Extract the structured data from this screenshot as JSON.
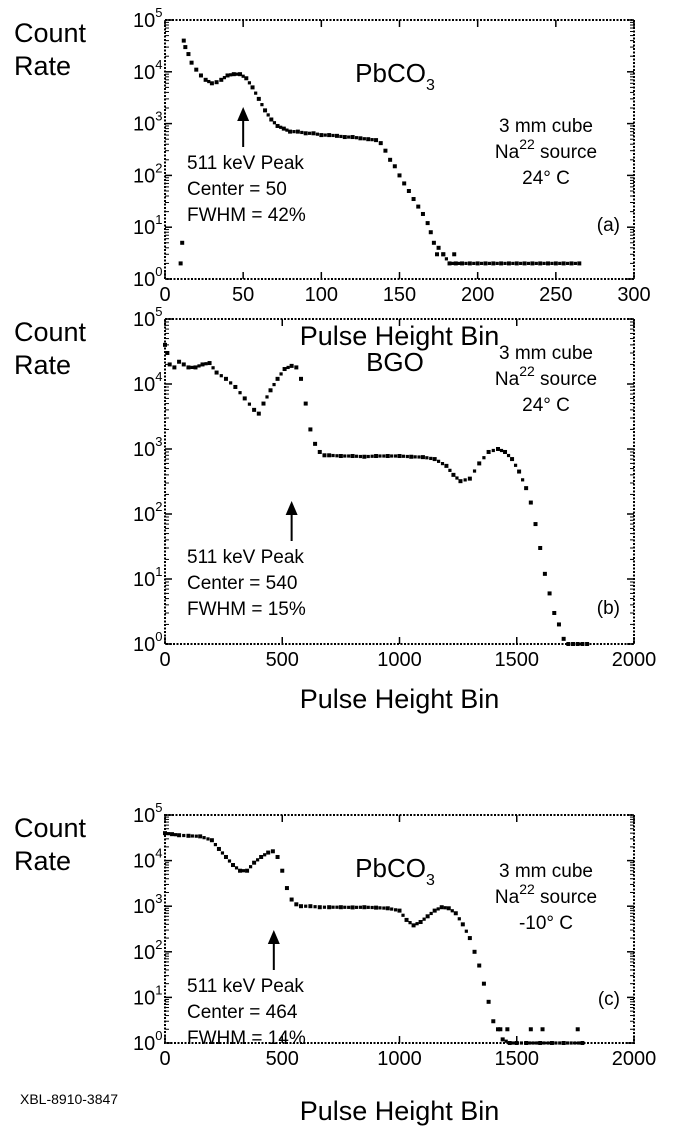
{
  "footer_code": "XBL-8910-3847",
  "chart_data": [
    {
      "type": "scatter",
      "panel_label": "(a)",
      "title": "PbCO",
      "title_subscript": "3",
      "ylabel_lines": [
        "Count",
        "Rate"
      ],
      "xlabel": "Pulse Height Bin",
      "yscale": "log",
      "ylim": [
        1,
        100000
      ],
      "xlim": [
        0,
        300
      ],
      "xticks": [
        0,
        50,
        100,
        150,
        200,
        250,
        300
      ],
      "yticks": [
        {
          "base": "10",
          "exp": "0"
        },
        {
          "base": "10",
          "exp": "1"
        },
        {
          "base": "10",
          "exp": "2"
        },
        {
          "base": "10",
          "exp": "3"
        },
        {
          "base": "10",
          "exp": "4"
        },
        {
          "base": "10",
          "exp": "5"
        }
      ],
      "info": {
        "size": "3 mm cube",
        "source_prefix": "Na",
        "source_sup": "22",
        "source_suffix": " source",
        "temperature": "24° C"
      },
      "peak": {
        "label": "511 keV Peak",
        "center": "Center = 50",
        "fwhm": "FWHM = 42%",
        "x": 50
      },
      "x": [
        12,
        13,
        15,
        17,
        20,
        23,
        26,
        30,
        33,
        36,
        40,
        44,
        48,
        52,
        56,
        60,
        64,
        68,
        72,
        76,
        80,
        85,
        90,
        95,
        100,
        105,
        110,
        115,
        120,
        125,
        130,
        135,
        138,
        141,
        144,
        147,
        150,
        153,
        156,
        159,
        162,
        165,
        168,
        170,
        172,
        175,
        178,
        182,
        186,
        190,
        195,
        200,
        205,
        210,
        215,
        220,
        225,
        230,
        235,
        240,
        245,
        250,
        255,
        260,
        265
      ],
      "y": [
        40000,
        30000,
        22000,
        15000,
        11000,
        8500,
        7000,
        6000,
        6300,
        7000,
        8500,
        9000,
        9000,
        7500,
        5000,
        3000,
        1800,
        1200,
        900,
        800,
        700,
        700,
        650,
        650,
        600,
        600,
        580,
        550,
        550,
        520,
        500,
        480,
        420,
        300,
        200,
        150,
        100,
        70,
        50,
        35,
        25,
        18,
        12,
        8,
        5,
        4,
        3,
        2,
        2,
        2,
        2,
        2,
        2,
        2,
        2,
        2,
        2,
        2,
        2,
        2,
        2,
        2,
        2,
        2,
        2
      ],
      "outliers": {
        "x": [
          11,
          10,
          174,
          178,
          185
        ],
        "y": [
          5,
          2,
          3,
          3,
          3
        ]
      }
    },
    {
      "type": "scatter",
      "panel_label": "(b)",
      "title": "BGO",
      "title_subscript": "",
      "ylabel_lines": [
        "Count",
        "Rate"
      ],
      "xlabel": "Pulse Height Bin",
      "yscale": "log",
      "ylim": [
        1,
        100000
      ],
      "xlim": [
        0,
        2000
      ],
      "xticks": [
        0,
        500,
        1000,
        1500,
        2000
      ],
      "yticks": [
        {
          "base": "10",
          "exp": "0"
        },
        {
          "base": "10",
          "exp": "1"
        },
        {
          "base": "10",
          "exp": "2"
        },
        {
          "base": "10",
          "exp": "3"
        },
        {
          "base": "10",
          "exp": "4"
        },
        {
          "base": "10",
          "exp": "5"
        }
      ],
      "info": {
        "size": "3 mm cube",
        "source_prefix": "Na",
        "source_sup": "22",
        "source_suffix": " source",
        "temperature": "24° C"
      },
      "peak": {
        "label": "511 keV Peak",
        "center": "Center = 540",
        "fwhm": "FWHM = 15%",
        "x": 540
      },
      "x": [
        0,
        10,
        20,
        40,
        60,
        80,
        100,
        130,
        160,
        190,
        220,
        260,
        300,
        340,
        380,
        400,
        420,
        450,
        480,
        510,
        540,
        560,
        580,
        600,
        620,
        640,
        660,
        680,
        700,
        750,
        800,
        850,
        900,
        950,
        1000,
        1050,
        1100,
        1150,
        1200,
        1230,
        1260,
        1300,
        1340,
        1380,
        1420,
        1450,
        1480,
        1510,
        1540,
        1560,
        1580,
        1600,
        1620,
        1640,
        1660,
        1680,
        1700,
        1720,
        1740,
        1760,
        1780,
        1800
      ],
      "y": [
        40000,
        30000,
        20000,
        18000,
        22000,
        20000,
        18000,
        18000,
        20000,
        21000,
        15000,
        12000,
        9000,
        6000,
        4000,
        3500,
        5000,
        8000,
        12000,
        17000,
        19000,
        18000,
        12000,
        5000,
        2000,
        1200,
        900,
        800,
        800,
        780,
        780,
        760,
        780,
        780,
        780,
        760,
        750,
        700,
        550,
        400,
        320,
        350,
        600,
        900,
        1000,
        900,
        700,
        450,
        250,
        150,
        70,
        30,
        12,
        6,
        3,
        2,
        1.2,
        1,
        1,
        1,
        1,
        1
      ],
      "outliers": {
        "x": [],
        "y": []
      }
    },
    {
      "type": "scatter",
      "panel_label": "(c)",
      "title": "PbCO",
      "title_subscript": "3",
      "ylabel_lines": [
        "Count",
        "Rate"
      ],
      "xlabel": "Pulse Height Bin",
      "yscale": "log",
      "ylim": [
        1,
        100000
      ],
      "xlim": [
        0,
        2000
      ],
      "xticks": [
        0,
        500,
        1000,
        1500,
        2000
      ],
      "yticks": [
        {
          "base": "10",
          "exp": "0"
        },
        {
          "base": "10",
          "exp": "1"
        },
        {
          "base": "10",
          "exp": "2"
        },
        {
          "base": "10",
          "exp": "3"
        },
        {
          "base": "10",
          "exp": "4"
        },
        {
          "base": "10",
          "exp": "5"
        }
      ],
      "info": {
        "size": "3 mm cube",
        "source_prefix": "Na",
        "source_sup": "22",
        "source_suffix": " source",
        "temperature": "-10° C"
      },
      "peak": {
        "label": "511 keV Peak",
        "center": "Center = 464",
        "fwhm": "FWHM = 14%",
        "x": 464
      },
      "x": [
        0,
        30,
        60,
        100,
        150,
        200,
        230,
        260,
        290,
        320,
        350,
        380,
        410,
        440,
        460,
        480,
        500,
        520,
        540,
        560,
        580,
        620,
        660,
        700,
        750,
        800,
        850,
        900,
        950,
        1000,
        1030,
        1060,
        1090,
        1120,
        1150,
        1180,
        1210,
        1240,
        1270,
        1300,
        1320,
        1340,
        1360,
        1380,
        1400,
        1420,
        1440,
        1470,
        1500,
        1540,
        1600,
        1650,
        1700,
        1780
      ],
      "y": [
        40000,
        38000,
        36000,
        35000,
        34000,
        28000,
        18000,
        12000,
        8000,
        6000,
        6000,
        9000,
        12000,
        15000,
        16000,
        12000,
        6000,
        2500,
        1400,
        1100,
        1000,
        1000,
        950,
        950,
        950,
        940,
        950,
        930,
        900,
        800,
        500,
        380,
        450,
        600,
        800,
        950,
        900,
        700,
        400,
        200,
        100,
        50,
        20,
        8,
        3,
        2,
        1.2,
        1,
        1,
        1,
        1,
        1,
        1,
        1
      ],
      "outliers": {
        "x": [
          1430,
          1460,
          1560,
          1610,
          1760
        ],
        "y": [
          2,
          2,
          2,
          2,
          2
        ]
      }
    }
  ]
}
